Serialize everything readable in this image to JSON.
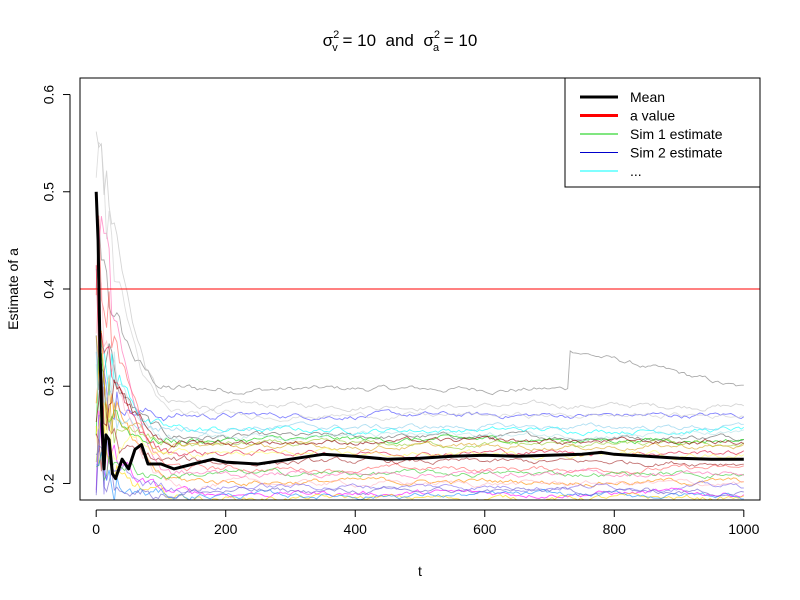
{
  "chart_data": {
    "type": "line",
    "title": {
      "part1_sym": "σ",
      "part1_sup": "2",
      "part1_sub": "v",
      "part1_val": " = 10  and  ",
      "part2_sym": "σ",
      "part2_sup": "2",
      "part2_sub": "a",
      "part2_val": " = 10"
    },
    "xlabel": "t",
    "ylabel": "Estimate of a",
    "xlim": [
      -25,
      1025
    ],
    "ylim": [
      0.183,
      0.617
    ],
    "x_ticks": [
      0,
      200,
      400,
      600,
      800,
      1000
    ],
    "y_ticks": [
      0.2,
      0.3,
      0.4,
      0.5,
      0.6
    ],
    "a_value": 0.4,
    "legend": {
      "position": "top-right",
      "entries": [
        {
          "label": "Mean",
          "color": "#000000",
          "width": 3
        },
        {
          "label": "a value",
          "color": "#ff0000",
          "width": 3
        },
        {
          "label": "Sim 1 estimate",
          "color": "#00cc00",
          "width": 1
        },
        {
          "label": "Sim 2 estimate",
          "color": "#0000cc",
          "width": 1
        },
        {
          "label": "...",
          "color": "#00ffff",
          "width": 1
        }
      ]
    },
    "mean_series": {
      "name": "Mean",
      "color": "#000000",
      "x": [
        0,
        3,
        6,
        9,
        12,
        15,
        20,
        25,
        30,
        40,
        50,
        60,
        70,
        80,
        100,
        120,
        150,
        180,
        200,
        250,
        300,
        350,
        400,
        450,
        500,
        550,
        600,
        650,
        700,
        750,
        780,
        800,
        850,
        900,
        950,
        1000
      ],
      "y": [
        0.5,
        0.45,
        0.33,
        0.26,
        0.215,
        0.25,
        0.245,
        0.21,
        0.205,
        0.225,
        0.215,
        0.235,
        0.24,
        0.22,
        0.22,
        0.215,
        0.22,
        0.225,
        0.222,
        0.22,
        0.225,
        0.23,
        0.228,
        0.225,
        0.226,
        0.228,
        0.229,
        0.228,
        0.229,
        0.23,
        0.232,
        0.23,
        0.228,
        0.226,
        0.225,
        0.225
      ]
    },
    "simulation_series": [
      {
        "color": "#808080",
        "start": 0.42,
        "end": 0.297,
        "jump_t": 730,
        "jump_to": 0.338
      },
      {
        "color": "#bfbfbf",
        "start": 0.61,
        "end": 0.28
      },
      {
        "color": "#606060",
        "start": 0.35,
        "end": 0.248
      },
      {
        "color": "#4040ff",
        "start": 0.3,
        "end": 0.27
      },
      {
        "color": "#00ffff",
        "start": 0.38,
        "end": 0.255
      },
      {
        "color": "#00cc00",
        "start": 0.28,
        "end": 0.245
      },
      {
        "color": "#ff6060",
        "start": 0.45,
        "end": 0.215
      },
      {
        "color": "#ff00ff",
        "start": 0.25,
        "end": 0.19
      },
      {
        "color": "#ffd700",
        "start": 0.24,
        "end": 0.185
      },
      {
        "color": "#9acd32",
        "start": 0.27,
        "end": 0.24
      },
      {
        "color": "#a52a2a",
        "start": 0.26,
        "end": 0.222
      },
      {
        "color": "#ff8c00",
        "start": 0.33,
        "end": 0.202
      },
      {
        "color": "#87ceeb",
        "start": 0.29,
        "end": 0.258
      },
      {
        "color": "#ffb6c1",
        "start": 0.4,
        "end": 0.2
      },
      {
        "color": "#7b68ee",
        "start": 0.22,
        "end": 0.197
      },
      {
        "color": "#daa520",
        "start": 0.31,
        "end": 0.238
      },
      {
        "color": "#dc143c",
        "start": 0.36,
        "end": 0.232
      },
      {
        "color": "#32cd32",
        "start": 0.23,
        "end": 0.21
      },
      {
        "color": "#1e90ff",
        "start": 0.2,
        "end": 0.188
      },
      {
        "color": "#ff69b4",
        "start": 0.5,
        "end": 0.21
      },
      {
        "color": "#cccccc",
        "start": 0.55,
        "end": 0.27
      },
      {
        "color": "#b0e0e6",
        "start": 0.34,
        "end": 0.25
      },
      {
        "color": "#ffff66",
        "start": 0.26,
        "end": 0.23
      },
      {
        "color": "#8b0000",
        "start": 0.32,
        "end": 0.243
      },
      {
        "color": "#6a5acd",
        "start": 0.21,
        "end": 0.192
      }
    ]
  }
}
